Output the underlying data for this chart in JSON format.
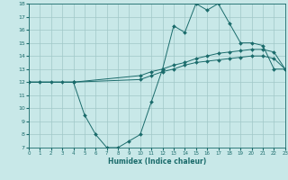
{
  "xlabel": "Humidex (Indice chaleur)",
  "bg_color": "#c8e8e8",
  "line_color": "#1a6b6b",
  "grid_color": "#a0c8c8",
  "xlim": [
    0,
    23
  ],
  "ylim": [
    7,
    18
  ],
  "yticks": [
    7,
    8,
    9,
    10,
    11,
    12,
    13,
    14,
    15,
    16,
    17,
    18
  ],
  "xticks": [
    0,
    1,
    2,
    3,
    4,
    5,
    6,
    7,
    8,
    9,
    10,
    11,
    12,
    13,
    14,
    15,
    16,
    17,
    18,
    19,
    20,
    21,
    22,
    23
  ],
  "line1_x": [
    0,
    1,
    2,
    3,
    4,
    5,
    6,
    7,
    8,
    9,
    10,
    11,
    12,
    13,
    14,
    15,
    16,
    17,
    18,
    19,
    20,
    21,
    22,
    23
  ],
  "line1_y": [
    12,
    12,
    12,
    12,
    12,
    9.5,
    8,
    7,
    7,
    7.5,
    8,
    10.5,
    13,
    16.3,
    15.8,
    18,
    17.5,
    18,
    16.5,
    15,
    15,
    14.8,
    13,
    13
  ],
  "line2_x": [
    0,
    4,
    10,
    11,
    12,
    13,
    14,
    15,
    16,
    17,
    18,
    19,
    20,
    21,
    22,
    23
  ],
  "line2_y": [
    12,
    12,
    12.5,
    12.8,
    13.0,
    13.3,
    13.5,
    13.8,
    14.0,
    14.2,
    14.3,
    14.4,
    14.5,
    14.5,
    14.3,
    13
  ],
  "line3_x": [
    0,
    4,
    10,
    11,
    12,
    13,
    14,
    15,
    16,
    17,
    18,
    19,
    20,
    21,
    22,
    23
  ],
  "line3_y": [
    12,
    12,
    12.2,
    12.5,
    12.8,
    13.0,
    13.3,
    13.5,
    13.6,
    13.7,
    13.8,
    13.9,
    14.0,
    14.0,
    13.8,
    13
  ],
  "marker": "D",
  "marker_size": 2.0,
  "linewidth": 0.7
}
